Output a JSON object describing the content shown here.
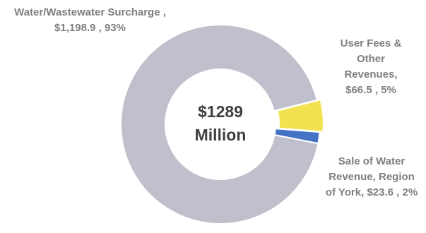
{
  "chart_data": {
    "type": "donut",
    "categories": [
      "Water/Wastewater Surcharge ,",
      "User Fees & Other Revenues,",
      "Sale of Water Revenue, Region of York,"
    ],
    "values": [
      1198.9,
      66.5,
      23.6
    ],
    "value_labels": [
      "$1,198.9",
      "$66.5",
      "$23.6"
    ],
    "percents": [
      93,
      5,
      2
    ],
    "percent_labels": [
      "93%",
      "5%",
      "2%"
    ],
    "label_separator": ",",
    "colors": [
      "#bfc0cc",
      "#f2e250",
      "#4472c4"
    ],
    "total": {
      "value": 1289,
      "label": "$1289"
    },
    "total_unit": "Million"
  }
}
